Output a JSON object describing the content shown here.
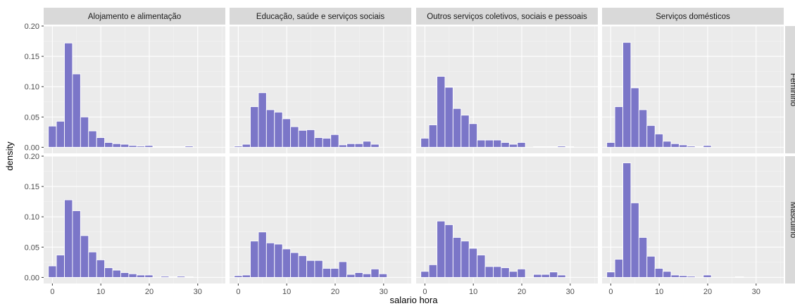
{
  "chart_data": {
    "type": "histogram",
    "xlabel": "salario  hora",
    "ylabel": "density",
    "x_ticks": [
      0,
      10,
      20,
      30
    ],
    "y_ticks": [
      0,
      0.05,
      0.1,
      0.15,
      0.2
    ],
    "y_tick_labels": [
      "0.00",
      "0.05",
      "0.10",
      "0.15",
      "0.20"
    ],
    "x_range": [
      -1.8,
      35.7
    ],
    "y_range": [
      -0.01,
      0.2
    ],
    "bin_width": 1.66,
    "bin_start": -0.83,
    "columns": [
      "Alojamento e alimentação",
      "Educação, saúde e serviços sociais",
      "Outros serviços coletivos, sociais e pessoais",
      "Serviços domésticos"
    ],
    "rows": [
      "Feminino",
      "Masculino"
    ],
    "bar_color": "#7b76c8",
    "panel_bg": "#ebebeb",
    "strip_bg": "#d9d9d9",
    "panels": [
      {
        "row": 0,
        "col": 0,
        "values": [
          0.035,
          0.043,
          0.172,
          0.121,
          0.05,
          0.027,
          0.016,
          0.008,
          0.006,
          0.005,
          0.003,
          0.002,
          0.003,
          0.001,
          0.001,
          0.001,
          0.001,
          0.002,
          0.0,
          0.0,
          0.0
        ]
      },
      {
        "row": 0,
        "col": 1,
        "values": [
          0.002,
          0.005,
          0.067,
          0.09,
          0.062,
          0.058,
          0.047,
          0.034,
          0.028,
          0.029,
          0.016,
          0.015,
          0.021,
          0.004,
          0.006,
          0.006,
          0.01,
          0.005,
          0.0,
          0.0,
          0.0
        ]
      },
      {
        "row": 0,
        "col": 2,
        "values": [
          0.015,
          0.037,
          0.117,
          0.099,
          0.064,
          0.053,
          0.039,
          0.012,
          0.012,
          0.012,
          0.008,
          0.005,
          0.008,
          0.0,
          0.001,
          0.001,
          0.001,
          0.002,
          0.001,
          0.0,
          0.0
        ]
      },
      {
        "row": 0,
        "col": 3,
        "values": [
          0.008,
          0.067,
          0.173,
          0.098,
          0.062,
          0.036,
          0.022,
          0.01,
          0.006,
          0.004,
          0.002,
          0.001,
          0.003,
          0.0,
          0.0,
          0.0,
          0.0,
          0.0,
          0.0,
          0.0,
          0.0
        ]
      },
      {
        "row": 1,
        "col": 0,
        "values": [
          0.019,
          0.037,
          0.128,
          0.11,
          0.069,
          0.042,
          0.029,
          0.016,
          0.012,
          0.008,
          0.006,
          0.004,
          0.004,
          0.0,
          0.002,
          0.001,
          0.002,
          0.001,
          0.0,
          0.0,
          0.0
        ]
      },
      {
        "row": 1,
        "col": 1,
        "values": [
          0.003,
          0.004,
          0.06,
          0.075,
          0.057,
          0.055,
          0.047,
          0.041,
          0.036,
          0.028,
          0.028,
          0.015,
          0.015,
          0.026,
          0.005,
          0.008,
          0.006,
          0.014,
          0.006,
          0.0,
          0.0
        ]
      },
      {
        "row": 1,
        "col": 2,
        "values": [
          0.01,
          0.021,
          0.093,
          0.087,
          0.066,
          0.06,
          0.048,
          0.037,
          0.018,
          0.018,
          0.016,
          0.01,
          0.014,
          0.0,
          0.005,
          0.005,
          0.009,
          0.004,
          0.0,
          0.0,
          0.0
        ]
      },
      {
        "row": 1,
        "col": 3,
        "values": [
          0.009,
          0.03,
          0.189,
          0.123,
          0.066,
          0.035,
          0.015,
          0.01,
          0.004,
          0.003,
          0.002,
          0.0,
          0.004,
          0.0,
          0.0,
          0.0,
          0.001,
          0.0,
          0.0,
          0.0,
          0.0
        ]
      }
    ]
  }
}
